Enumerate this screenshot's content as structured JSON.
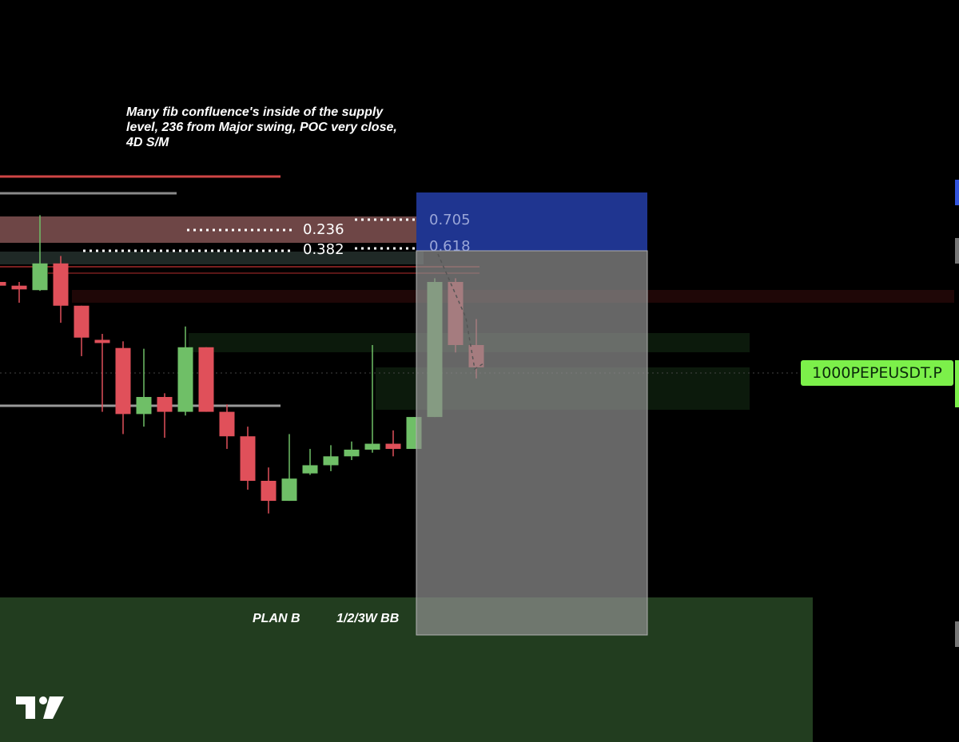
{
  "annotations": {
    "note": "Many fib confluence's inside of the supply level, 236 from Major swing, POC very close, 4D S/M",
    "plan_b": "PLAN B",
    "bb_label": "1/2/3W BB"
  },
  "fib_levels": {
    "l0236": "0.236",
    "l0382": "0.382",
    "l0705": "0.705",
    "l0618": "0.618"
  },
  "symbol": "1000PEPEUSDT.P",
  "colors": {
    "background": "#000000",
    "bull": "#6fbf67",
    "bear": "#e0505a",
    "supply_zone": "#c98080",
    "position_stop": "#1f3590",
    "position_body": "#8e8e8e",
    "demand_zone": "#223d1f",
    "symbol_tag": "#7cf04a"
  },
  "icons": {
    "logo": "tradingview-logo-icon"
  },
  "chart_data": {
    "type": "candlestick",
    "y_axis_visible": false,
    "candles": [
      {
        "o": 62.0,
        "h": 63.0,
        "l": 60.5,
        "c": 61.5
      },
      {
        "o": 61.5,
        "h": 62.0,
        "l": 59.2,
        "c": 61.0
      },
      {
        "o": 60.9,
        "h": 71.0,
        "l": 60.8,
        "c": 64.5
      },
      {
        "o": 64.5,
        "h": 65.5,
        "l": 56.5,
        "c": 58.8
      },
      {
        "o": 58.8,
        "h": 58.8,
        "l": 52.0,
        "c": 54.5
      },
      {
        "o": 54.2,
        "h": 55.0,
        "l": 44.5,
        "c": 53.9
      },
      {
        "o": 53.1,
        "h": 54.0,
        "l": 41.5,
        "c": 44.2
      },
      {
        "o": 44.2,
        "h": 53.0,
        "l": 42.5,
        "c": 46.5
      },
      {
        "o": 46.5,
        "h": 47.0,
        "l": 41.0,
        "c": 44.5
      },
      {
        "o": 44.5,
        "h": 56.0,
        "l": 44.0,
        "c": 53.2
      },
      {
        "o": 53.2,
        "h": 53.2,
        "l": 44.5,
        "c": 44.5
      },
      {
        "o": 44.5,
        "h": 45.5,
        "l": 39.5,
        "c": 41.2
      },
      {
        "o": 41.2,
        "h": 42.5,
        "l": 34.0,
        "c": 35.2
      },
      {
        "o": 35.2,
        "h": 37.0,
        "l": 30.8,
        "c": 32.5
      },
      {
        "o": 32.5,
        "h": 41.5,
        "l": 32.5,
        "c": 35.5
      },
      {
        "o": 36.2,
        "h": 39.5,
        "l": 36.0,
        "c": 37.3
      },
      {
        "o": 37.3,
        "h": 40.0,
        "l": 36.5,
        "c": 38.5
      },
      {
        "o": 38.5,
        "h": 40.5,
        "l": 38.0,
        "c": 39.4
      },
      {
        "o": 39.4,
        "h": 53.5,
        "l": 39.0,
        "c": 40.2
      },
      {
        "o": 40.2,
        "h": 42.0,
        "l": 38.5,
        "c": 39.5
      },
      {
        "o": 39.5,
        "h": 43.8,
        "l": 39.5,
        "c": 43.8
      },
      {
        "o": 43.8,
        "h": 62.5,
        "l": 43.8,
        "c": 62.0
      },
      {
        "o": 62.0,
        "h": 62.5,
        "l": 52.5,
        "c": 53.5
      },
      {
        "o": 53.5,
        "h": 57.0,
        "l": 49.0,
        "c": 50.5
      }
    ]
  }
}
